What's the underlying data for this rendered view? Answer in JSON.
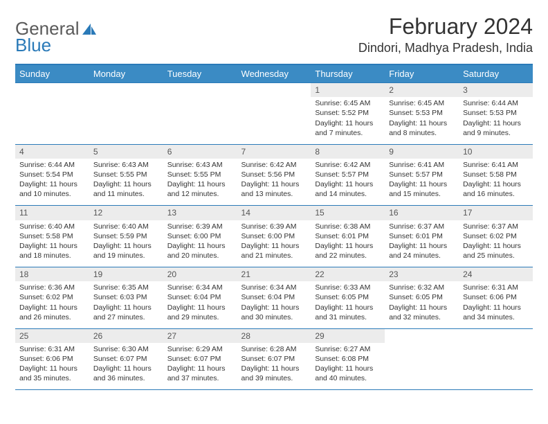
{
  "logo": {
    "word1": "General",
    "word2": "Blue"
  },
  "title": "February 2024",
  "location": "Dindori, Madhya Pradesh, India",
  "colors": {
    "header_bg": "#3b8bc4",
    "accent_line": "#2a7ab8",
    "daynum_bg": "#ececec",
    "text": "#333333",
    "logo_gray": "#5a5a5a"
  },
  "day_headers": [
    "Sunday",
    "Monday",
    "Tuesday",
    "Wednesday",
    "Thursday",
    "Friday",
    "Saturday"
  ],
  "weeks": [
    [
      null,
      null,
      null,
      null,
      {
        "n": "1",
        "sr": "6:45 AM",
        "ss": "5:52 PM",
        "dl": "11 hours and 7 minutes."
      },
      {
        "n": "2",
        "sr": "6:45 AM",
        "ss": "5:53 PM",
        "dl": "11 hours and 8 minutes."
      },
      {
        "n": "3",
        "sr": "6:44 AM",
        "ss": "5:53 PM",
        "dl": "11 hours and 9 minutes."
      }
    ],
    [
      {
        "n": "4",
        "sr": "6:44 AM",
        "ss": "5:54 PM",
        "dl": "11 hours and 10 minutes."
      },
      {
        "n": "5",
        "sr": "6:43 AM",
        "ss": "5:55 PM",
        "dl": "11 hours and 11 minutes."
      },
      {
        "n": "6",
        "sr": "6:43 AM",
        "ss": "5:55 PM",
        "dl": "11 hours and 12 minutes."
      },
      {
        "n": "7",
        "sr": "6:42 AM",
        "ss": "5:56 PM",
        "dl": "11 hours and 13 minutes."
      },
      {
        "n": "8",
        "sr": "6:42 AM",
        "ss": "5:57 PM",
        "dl": "11 hours and 14 minutes."
      },
      {
        "n": "9",
        "sr": "6:41 AM",
        "ss": "5:57 PM",
        "dl": "11 hours and 15 minutes."
      },
      {
        "n": "10",
        "sr": "6:41 AM",
        "ss": "5:58 PM",
        "dl": "11 hours and 16 minutes."
      }
    ],
    [
      {
        "n": "11",
        "sr": "6:40 AM",
        "ss": "5:58 PM",
        "dl": "11 hours and 18 minutes."
      },
      {
        "n": "12",
        "sr": "6:40 AM",
        "ss": "5:59 PM",
        "dl": "11 hours and 19 minutes."
      },
      {
        "n": "13",
        "sr": "6:39 AM",
        "ss": "6:00 PM",
        "dl": "11 hours and 20 minutes."
      },
      {
        "n": "14",
        "sr": "6:39 AM",
        "ss": "6:00 PM",
        "dl": "11 hours and 21 minutes."
      },
      {
        "n": "15",
        "sr": "6:38 AM",
        "ss": "6:01 PM",
        "dl": "11 hours and 22 minutes."
      },
      {
        "n": "16",
        "sr": "6:37 AM",
        "ss": "6:01 PM",
        "dl": "11 hours and 24 minutes."
      },
      {
        "n": "17",
        "sr": "6:37 AM",
        "ss": "6:02 PM",
        "dl": "11 hours and 25 minutes."
      }
    ],
    [
      {
        "n": "18",
        "sr": "6:36 AM",
        "ss": "6:02 PM",
        "dl": "11 hours and 26 minutes."
      },
      {
        "n": "19",
        "sr": "6:35 AM",
        "ss": "6:03 PM",
        "dl": "11 hours and 27 minutes."
      },
      {
        "n": "20",
        "sr": "6:34 AM",
        "ss": "6:04 PM",
        "dl": "11 hours and 29 minutes."
      },
      {
        "n": "21",
        "sr": "6:34 AM",
        "ss": "6:04 PM",
        "dl": "11 hours and 30 minutes."
      },
      {
        "n": "22",
        "sr": "6:33 AM",
        "ss": "6:05 PM",
        "dl": "11 hours and 31 minutes."
      },
      {
        "n": "23",
        "sr": "6:32 AM",
        "ss": "6:05 PM",
        "dl": "11 hours and 32 minutes."
      },
      {
        "n": "24",
        "sr": "6:31 AM",
        "ss": "6:06 PM",
        "dl": "11 hours and 34 minutes."
      }
    ],
    [
      {
        "n": "25",
        "sr": "6:31 AM",
        "ss": "6:06 PM",
        "dl": "11 hours and 35 minutes."
      },
      {
        "n": "26",
        "sr": "6:30 AM",
        "ss": "6:07 PM",
        "dl": "11 hours and 36 minutes."
      },
      {
        "n": "27",
        "sr": "6:29 AM",
        "ss": "6:07 PM",
        "dl": "11 hours and 37 minutes."
      },
      {
        "n": "28",
        "sr": "6:28 AM",
        "ss": "6:07 PM",
        "dl": "11 hours and 39 minutes."
      },
      {
        "n": "29",
        "sr": "6:27 AM",
        "ss": "6:08 PM",
        "dl": "11 hours and 40 minutes."
      },
      null,
      null
    ]
  ],
  "labels": {
    "sunrise": "Sunrise:",
    "sunset": "Sunset:",
    "daylight": "Daylight:"
  }
}
